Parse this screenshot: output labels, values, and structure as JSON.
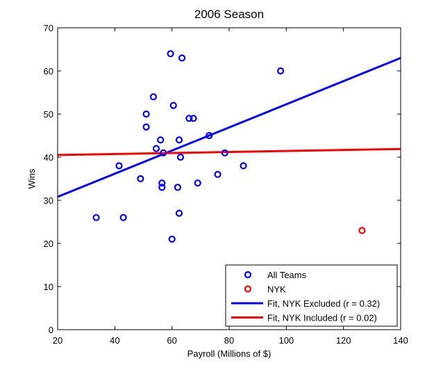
{
  "chart_data": {
    "type": "scatter",
    "title": "2006 Season",
    "xlabel": "Payroll (Millions of $)",
    "ylabel": "Wins",
    "xlim": [
      20,
      140
    ],
    "ylim": [
      0,
      70
    ],
    "xticks": [
      20,
      40,
      60,
      80,
      100,
      120,
      140
    ],
    "yticks": [
      0,
      10,
      20,
      30,
      40,
      50,
      60,
      70
    ],
    "grid": false,
    "legend_placement": "bottom-right",
    "series": [
      {
        "name": "All Teams",
        "kind": "scatter",
        "color": "#0000ff",
        "points": [
          [
            33.5,
            26
          ],
          [
            41.5,
            38
          ],
          [
            43,
            26
          ],
          [
            49,
            35
          ],
          [
            51,
            50
          ],
          [
            51,
            47
          ],
          [
            53.5,
            54
          ],
          [
            54.5,
            42
          ],
          [
            56,
            44
          ],
          [
            56.5,
            34
          ],
          [
            56.5,
            33
          ],
          [
            57,
            41
          ],
          [
            59.5,
            64
          ],
          [
            60,
            21
          ],
          [
            60.5,
            52
          ],
          [
            62,
            33
          ],
          [
            62.5,
            27
          ],
          [
            62.5,
            44
          ],
          [
            63,
            40
          ],
          [
            63.5,
            63
          ],
          [
            66,
            49
          ],
          [
            67.5,
            49
          ],
          [
            69,
            34
          ],
          [
            73,
            45
          ],
          [
            76,
            36
          ],
          [
            78.5,
            41
          ],
          [
            85,
            38
          ],
          [
            98,
            60
          ]
        ]
      },
      {
        "name": "NYK",
        "kind": "scatter",
        "color": "#ff0000",
        "points": [
          [
            126.5,
            23
          ]
        ]
      },
      {
        "name": "Fit, NYK Excluded (r = 0.32)",
        "kind": "line",
        "color": "#0000ff",
        "points": [
          [
            20,
            30.8
          ],
          [
            140,
            63
          ]
        ]
      },
      {
        "name": "Fit, NYK Included (r = 0.02)",
        "kind": "line",
        "color": "#ff0000",
        "points": [
          [
            20,
            40.5
          ],
          [
            140,
            41.9
          ]
        ]
      }
    ]
  }
}
